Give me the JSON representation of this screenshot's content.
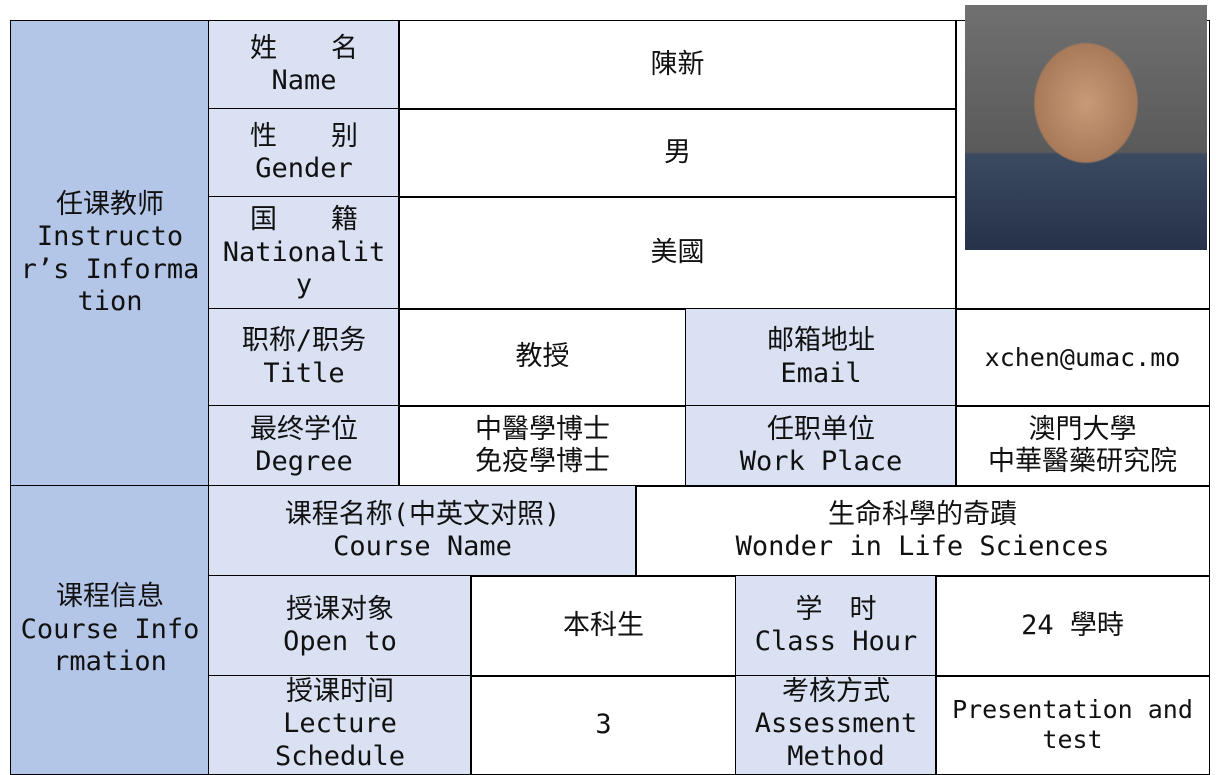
{
  "instructor": {
    "section": {
      "zh": "任课教师",
      "en": "Instructor’s Information"
    },
    "name": {
      "label_zh": "姓　　名",
      "label_en": "Name",
      "value": "陳新"
    },
    "gender": {
      "label_zh": "性　　别",
      "label_en": "Gender",
      "value": "男"
    },
    "nationality": {
      "label_zh": "国　　籍",
      "label_en": "Nationality",
      "value": "美國"
    },
    "title": {
      "label_zh": "职称/职务",
      "label_en": "Title",
      "value": "教授"
    },
    "email": {
      "label_zh": "邮箱地址",
      "label_en": "Email",
      "value": "xchen@umac.mo"
    },
    "degree": {
      "label_zh": "最终学位",
      "label_en": "Degree",
      "value_lines": [
        "中醫學博士",
        "免疫學博士"
      ]
    },
    "work_place": {
      "label_zh": "任职单位",
      "label_en": "Work Place",
      "value_lines": [
        "澳門大學",
        "中華醫藥研究院"
      ]
    }
  },
  "course": {
    "section": {
      "zh": "课程信息",
      "en": "Course Information"
    },
    "course_name": {
      "label_zh": "课程名称(中英文对照)",
      "label_en": "Course Name",
      "value_zh": "生命科學的奇蹟",
      "value_en": "Wonder in Life Sciences"
    },
    "open_to": {
      "label_zh": "授课对象",
      "label_en": "Open to",
      "value": "本科生"
    },
    "class_hour": {
      "label_zh": "学　时",
      "label_en": "Class Hour",
      "value": "24 學時"
    },
    "schedule": {
      "label_zh": "授课时间",
      "label_en": "Lecture Schedule",
      "value": 3
    },
    "assessment": {
      "label_zh": "考核方式",
      "label_en": "Assessment Method",
      "value": "Presentation and test"
    }
  }
}
